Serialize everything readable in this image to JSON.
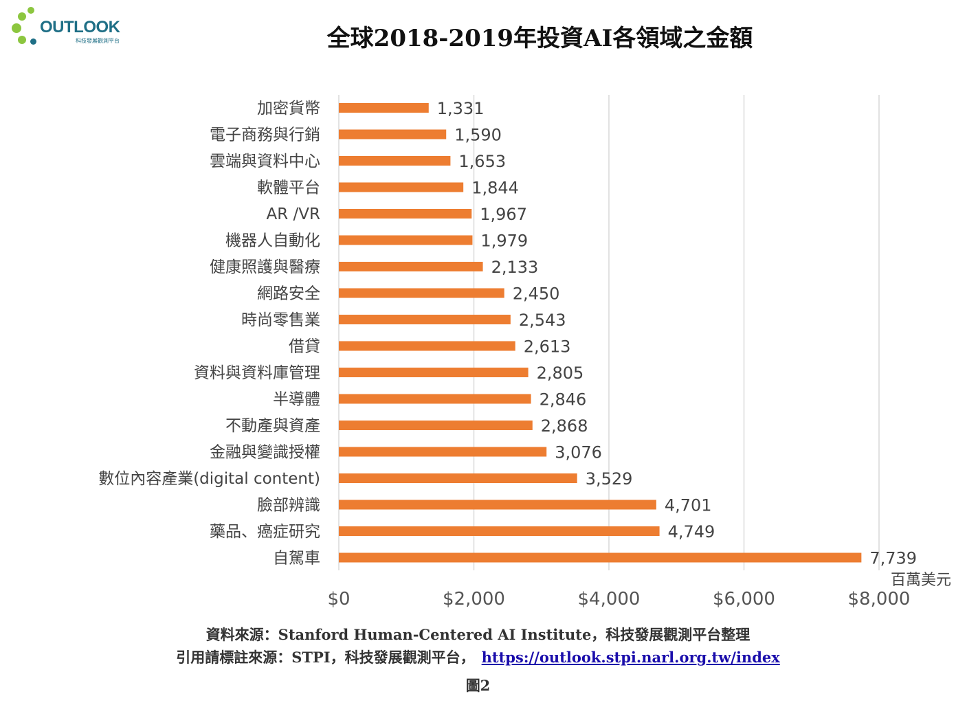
{
  "logo": {
    "word": "OUTLOOK",
    "subtitle": "科技發展觀測平台",
    "color": "#1f6f86",
    "accent": "#8cc63f"
  },
  "chart_data": {
    "type": "bar",
    "orientation": "horizontal",
    "title": "全球2018-2019年投資AI各領域之金額",
    "categories": [
      "加密貨幣",
      "電子商務與行銷",
      "雲端與資料中心",
      "軟體平台",
      "AR /VR",
      "機器人自動化",
      "健康照護與醫療",
      "網路安全",
      "時尚零售業",
      "借貸",
      "資料與資料庫管理",
      "半導體",
      "不動產與資產",
      "金融與變識授權",
      "數位內容產業(digital content)",
      "臉部辨識",
      "藥品、癌症研究",
      "自駕車"
    ],
    "values": [
      1331,
      1590,
      1653,
      1844,
      1967,
      1979,
      2133,
      2450,
      2543,
      2613,
      2805,
      2846,
      2868,
      3076,
      3529,
      4701,
      4749,
      7739
    ],
    "value_labels": [
      "1,331",
      "1,590",
      "1,653",
      "1,844",
      "1,967",
      "1,979",
      "2,133",
      "2,450",
      "2,543",
      "2,613",
      "2,805",
      "2,846",
      "2,868",
      "3,076",
      "3,529",
      "4,701",
      "4,749",
      "7,739"
    ],
    "xlim": [
      0,
      8000
    ],
    "x_ticks": [
      0,
      2000,
      4000,
      6000,
      8000
    ],
    "x_tick_labels": [
      "$0",
      "$2,000",
      "$4,000",
      "$6,000",
      "$8,000"
    ],
    "unit": "百萬美元",
    "grid": "vertical",
    "bar_color": "#ed7d31",
    "grid_color": "#d9d9d9"
  },
  "footer": {
    "source": "資料來源：Stanford Human-Centered AI Institute，科技發展觀測平台整理",
    "citation": "引用請標註來源：STPI，科技發展觀測平台，",
    "link": "https://outlook.stpi.narl.org.tw/index",
    "figure": "圖2"
  }
}
